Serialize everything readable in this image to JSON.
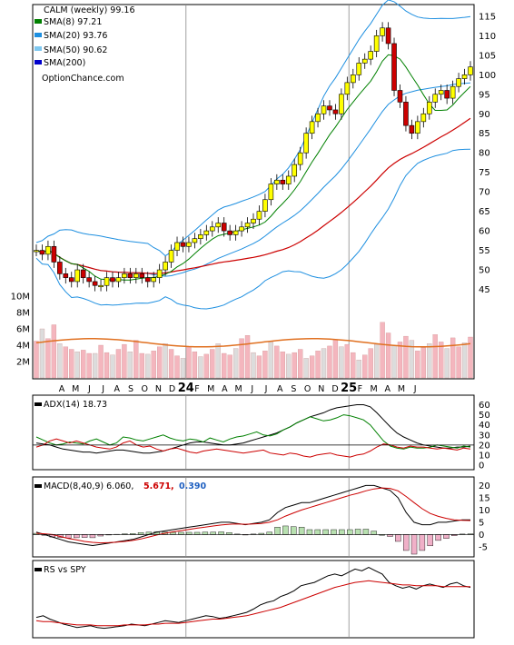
{
  "chart_data": [
    {
      "type": "candlestick",
      "title": "CALM (weekly) 99.16",
      "source": "OptionChance.com",
      "legend": [
        {
          "label": "SMA(8) 97.21",
          "color": "#008000"
        },
        {
          "label": "SMA(20) 93.76",
          "color": "#1e8fe0"
        },
        {
          "label": "SMA(50) 90.62",
          "color": "#7fc8f0"
        },
        {
          "label": "SMA(200)",
          "color": "#0000cc"
        }
      ],
      "legend_position": "top-left",
      "x_tick_labels": [
        "A",
        "M",
        "J",
        "J",
        "A",
        "S",
        "O",
        "N",
        "D",
        "24",
        "F",
        "M",
        "A",
        "M",
        "J",
        "J",
        "A",
        "S",
        "O",
        "N",
        "D",
        "25",
        "F",
        "M",
        "A",
        "M",
        "J"
      ],
      "ylim": [
        40,
        118
      ],
      "y_ticks": [
        45,
        50,
        55,
        60,
        65,
        70,
        75,
        80,
        85,
        90,
        95,
        100,
        105,
        110,
        115
      ],
      "colors": {
        "up": "#ffff00",
        "down": "#cc0000",
        "sma8": "#008000",
        "sma20_band": "#1e8fe0",
        "sma50": "#cc0000",
        "bollinger_alt": "#e8e040"
      },
      "series_close": [
        55,
        54,
        56,
        52,
        49,
        48,
        47,
        50,
        48,
        47,
        46,
        46,
        48,
        47,
        48,
        49,
        48,
        49,
        48,
        47,
        48,
        50,
        52,
        55,
        57,
        56,
        57,
        58,
        59,
        60,
        61,
        62,
        60,
        59,
        60,
        61,
        62,
        63,
        65,
        68,
        72,
        73,
        72,
        74,
        77,
        80,
        85,
        88,
        90,
        92,
        91,
        90,
        95,
        98,
        100,
        103,
        104,
        106,
        110,
        112,
        108,
        96,
        93,
        87,
        85,
        88,
        90,
        93,
        95,
        96,
        94,
        97,
        99,
        100,
        102
      ],
      "volume_ticks": [
        "10M",
        "8M",
        "6M",
        "4M",
        "2M"
      ],
      "volume_max": 10,
      "volume": [
        4.5,
        6,
        4.8,
        6.5,
        4.2,
        3.8,
        3.5,
        3.2,
        3.4,
        3,
        3,
        4,
        3.1,
        2.8,
        3.5,
        4.1,
        3.2,
        4.6,
        3,
        2.9,
        3.3,
        3.8,
        4.2,
        3.5,
        2.7,
        2.4,
        3.8,
        3.2,
        2.6,
        2.9,
        3.5,
        4.2,
        3,
        2.8,
        3.6,
        4.8,
        5.2,
        3.1,
        2.7,
        3.3,
        4.4,
        3.9,
        3.2,
        2.9,
        3.1,
        3.5,
        2.4,
        2.7,
        3.3,
        3.6,
        3.9,
        4.7,
        3.8,
        4.1,
        3.1,
        2.2,
        2.8,
        3.6,
        4.1,
        6.8,
        5.5,
        3.9,
        4.4,
        5.1,
        4.6,
        3.3,
        3.7,
        4.2,
        5.3,
        4.4,
        3.6,
        4.9,
        3.8,
        4.3,
        5
      ],
      "volume_avg": 4.3
    },
    {
      "type": "line",
      "label": "ADX(14) 18.73",
      "ylim": [
        0,
        65
      ],
      "y_ticks": [
        0,
        10,
        20,
        30,
        40,
        50,
        60
      ],
      "series": [
        {
          "color": "#000000",
          "values": [
            22,
            21,
            20,
            18,
            16,
            15,
            14,
            13,
            13,
            12,
            13,
            14,
            15,
            15,
            14,
            13,
            12,
            12,
            13,
            14,
            16,
            18,
            20,
            22,
            23,
            23,
            22,
            21,
            20,
            20,
            21,
            22,
            24,
            26,
            28,
            30,
            32,
            35,
            38,
            42,
            45,
            48,
            50,
            52,
            55,
            57,
            58,
            59,
            60,
            60,
            58,
            52,
            45,
            38,
            32,
            28,
            25,
            22,
            20,
            19,
            18,
            17,
            17,
            18,
            18,
            19
          ]
        },
        {
          "color": "#008000",
          "values": [
            28,
            25,
            22,
            20,
            21,
            23,
            22,
            21,
            24,
            26,
            23,
            20,
            22,
            28,
            27,
            25,
            24,
            26,
            28,
            30,
            27,
            25,
            24,
            26,
            25,
            23,
            27,
            25,
            23,
            26,
            28,
            29,
            31,
            33,
            30,
            29,
            31,
            35,
            38,
            42,
            45,
            48,
            46,
            44,
            45,
            47,
            50,
            49,
            47,
            45,
            40,
            32,
            24,
            19,
            17,
            16,
            18,
            17,
            17,
            18,
            20,
            19,
            18,
            17,
            19,
            18
          ]
        },
        {
          "color": "#cc0000",
          "values": [
            18,
            20,
            24,
            26,
            24,
            22,
            24,
            22,
            20,
            18,
            17,
            16,
            18,
            22,
            24,
            20,
            18,
            19,
            16,
            14,
            16,
            17,
            15,
            13,
            12,
            14,
            15,
            16,
            15,
            14,
            13,
            12,
            13,
            14,
            15,
            12,
            11,
            10,
            12,
            11,
            9,
            8,
            10,
            11,
            12,
            10,
            9,
            8,
            10,
            11,
            14,
            18,
            21,
            20,
            18,
            17,
            19,
            18,
            18,
            17,
            16,
            17,
            16,
            15,
            17,
            16
          ]
        }
      ]
    },
    {
      "type": "line",
      "label": "MACD(8,40,9) 6.060,",
      "label_signal": "5.671,",
      "label_hist": "0.390",
      "ylim": [
        -8,
        22
      ],
      "y_ticks": [
        -5,
        0,
        5,
        10,
        15,
        20
      ],
      "series": [
        {
          "color": "#000000",
          "values": [
            1,
            0,
            -1,
            -2,
            -3,
            -3.5,
            -4,
            -4.5,
            -4,
            -3.5,
            -3,
            -2.5,
            -2,
            -1,
            0,
            1,
            1.5,
            2,
            2.5,
            3,
            3.5,
            4,
            4.5,
            5,
            5,
            4.5,
            4,
            4.5,
            5,
            6,
            9,
            11,
            12,
            13,
            13,
            14,
            15,
            16,
            17,
            18,
            19,
            20,
            20,
            19,
            18,
            15,
            9,
            5,
            4,
            4,
            5,
            5,
            5.5,
            6,
            6
          ]
        },
        {
          "color": "#cc0000",
          "values": [
            0.5,
            0.3,
            0,
            -0.8,
            -1.6,
            -2.2,
            -2.8,
            -3.2,
            -3.4,
            -3.3,
            -3.1,
            -2.8,
            -2.4,
            -1.8,
            -1,
            -0.2,
            0.5,
            1.1,
            1.6,
            2.1,
            2.6,
            3,
            3.5,
            3.9,
            4.2,
            4.3,
            4.2,
            4.3,
            4.5,
            5,
            6,
            7.5,
            8.8,
            10,
            11,
            12,
            13,
            14,
            15,
            16,
            16.8,
            17.8,
            18.6,
            19,
            18.8,
            17.8,
            15.5,
            13,
            10.5,
            8.6,
            7.4,
            6.6,
            6,
            5.8,
            5.7
          ]
        }
      ],
      "histogram": [
        0.5,
        -0.3,
        -1,
        -1.2,
        -1.4,
        -1.3,
        -1.2,
        -1.3,
        -0.6,
        -0.2,
        0.1,
        0.3,
        0.4,
        0.8,
        1,
        1.2,
        1,
        0.9,
        0.9,
        0.9,
        0.9,
        1,
        1,
        1.1,
        0.8,
        0.2,
        -0.2,
        0.2,
        0.5,
        1,
        3,
        3.5,
        3.2,
        3,
        2,
        2,
        2,
        2,
        2,
        2,
        2.2,
        2.2,
        1.4,
        0,
        -0.8,
        -2.8,
        -6.5,
        -8,
        -6.5,
        -4.6,
        -2.4,
        -1.6,
        -0.5,
        0.2,
        0.3
      ]
    },
    {
      "type": "line",
      "label": "RS vs SPY",
      "series": [
        {
          "color": "#000000",
          "values": [
            20,
            22,
            18,
            15,
            12,
            10,
            8,
            9,
            10,
            8,
            7,
            8,
            9,
            10,
            12,
            11,
            10,
            12,
            14,
            16,
            15,
            14,
            16,
            18,
            20,
            22,
            21,
            19,
            20,
            22,
            24,
            26,
            30,
            35,
            38,
            40,
            45,
            48,
            52,
            58,
            60,
            62,
            66,
            70,
            72,
            70,
            74,
            78,
            76,
            80,
            76,
            72,
            62,
            58,
            55,
            57,
            54,
            58,
            60,
            58,
            56,
            60,
            62,
            58,
            56
          ]
        },
        {
          "color": "#cc0000",
          "values": [
            16,
            15,
            15,
            14,
            13,
            12,
            11,
            11,
            11,
            10,
            10,
            10,
            10,
            11,
            11,
            11,
            11,
            12,
            12,
            13,
            13,
            13,
            14,
            15,
            16,
            17,
            18,
            18,
            19,
            20,
            21,
            22,
            24,
            26,
            28,
            30,
            32,
            35,
            38,
            41,
            44,
            47,
            50,
            53,
            56,
            58,
            60,
            62,
            63,
            64,
            63,
            62,
            61,
            60,
            59,
            59,
            58,
            58,
            58,
            58,
            57,
            57,
            57,
            57,
            57
          ]
        }
      ]
    }
  ]
}
